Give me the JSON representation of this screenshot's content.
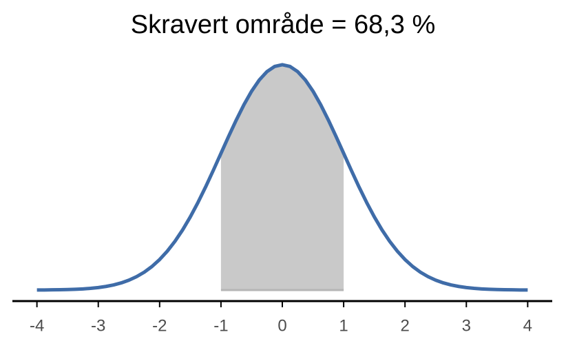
{
  "chart_data": {
    "type": "line",
    "title": "Skravert område = 68,3 %",
    "x": [
      -4,
      -3.875,
      -3.75,
      -3.625,
      -3.5,
      -3.375,
      -3.25,
      -3.125,
      -3,
      -2.875,
      -2.75,
      -2.625,
      -2.5,
      -2.375,
      -2.25,
      -2.125,
      -2,
      -1.875,
      -1.75,
      -1.625,
      -1.5,
      -1.375,
      -1.25,
      -1.125,
      -1,
      -0.875,
      -0.75,
      -0.625,
      -0.5,
      -0.375,
      -0.25,
      -0.125,
      0,
      0.125,
      0.25,
      0.375,
      0.5,
      0.625,
      0.75,
      0.875,
      1,
      1.125,
      1.25,
      1.375,
      1.5,
      1.625,
      1.75,
      1.875,
      2,
      2.125,
      2.25,
      2.375,
      2.5,
      2.625,
      2.75,
      2.875,
      3,
      3.125,
      3.25,
      3.375,
      3.5,
      3.625,
      3.75,
      3.875,
      4
    ],
    "series": [
      {
        "color": "#3f6ca8",
        "values": [
          0.0001,
          0.0002,
          0.0004,
          0.0006,
          0.0009,
          0.0013,
          0.002,
          0.003,
          0.0044,
          0.0064,
          0.0091,
          0.0127,
          0.0175,
          0.0238,
          0.0317,
          0.0417,
          0.054,
          0.0688,
          0.0863,
          0.1065,
          0.1295,
          0.155,
          0.1826,
          0.2119,
          0.242,
          0.2721,
          0.3011,
          0.3282,
          0.3521,
          0.3719,
          0.3867,
          0.3958,
          0.3989,
          0.3958,
          0.3867,
          0.3719,
          0.3521,
          0.3282,
          0.3011,
          0.2721,
          0.242,
          0.2119,
          0.1826,
          0.155,
          0.1295,
          0.1065,
          0.0863,
          0.0688,
          0.054,
          0.0417,
          0.0317,
          0.0238,
          0.0175,
          0.0127,
          0.0091,
          0.0064,
          0.0044,
          0.003,
          0.002,
          0.0013,
          0.0009,
          0.0006,
          0.0004,
          0.0002,
          0.0001
        ]
      }
    ],
    "shade": {
      "from": -1,
      "to": 1,
      "color": "#c9c9c9"
    },
    "xlim": [
      -4.4,
      4.4
    ],
    "xticks": [
      -4,
      -3,
      -2,
      -1,
      0,
      1,
      2,
      3,
      4
    ],
    "ylim": [
      0,
      0.4
    ]
  }
}
